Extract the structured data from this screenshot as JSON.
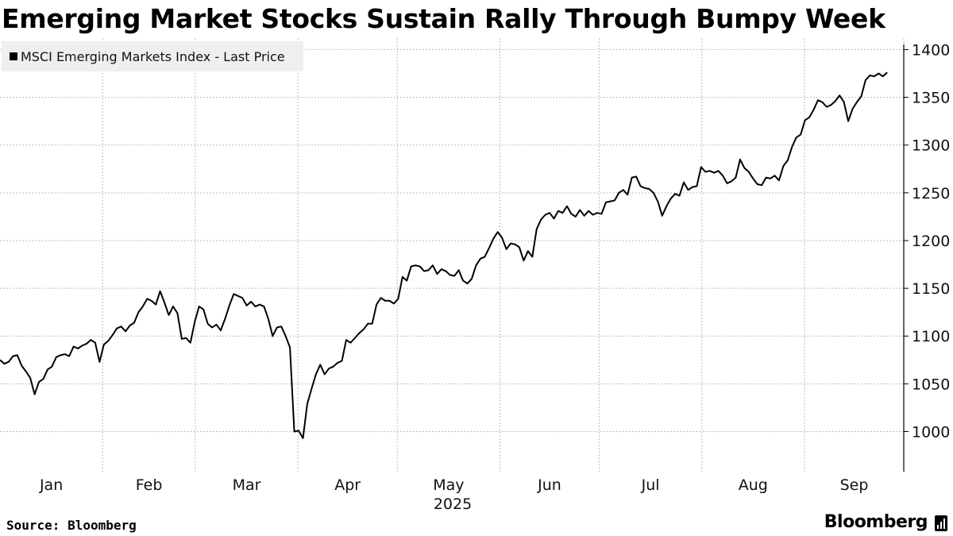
{
  "page": {
    "title": "Emerging Market Stocks Sustain Rally Through Bumpy Week",
    "source": "Source: Bloomberg",
    "brand": "Bloomberg"
  },
  "chart_data": {
    "type": "line",
    "title": "Emerging Market Stocks Sustain Rally Through Bumpy Week",
    "xlabel": "2025",
    "ylabel": "",
    "ylim": [
      958,
      1412
    ],
    "yticks": [
      1000,
      1050,
      1100,
      1150,
      1200,
      1250,
      1300,
      1350,
      1400
    ],
    "x_tick_labels": [
      "Jan",
      "Feb",
      "Mar",
      "Apr",
      "May",
      "Jun",
      "Jul",
      "Aug",
      "Sep"
    ],
    "x_year_label": "2025",
    "grid": true,
    "legend_position": "top-left",
    "color": "#000000",
    "series": [
      {
        "name": "MSCI Emerging Markets Index - Last Price",
        "start_date": "2025-01-01",
        "end_date": "2025-09-26",
        "values": [
          1075,
          1071,
          1073,
          1079,
          1080,
          1069,
          1063,
          1056,
          1039,
          1052,
          1055,
          1065,
          1068,
          1078,
          1080,
          1081,
          1079,
          1089,
          1087,
          1090,
          1092,
          1096,
          1093,
          1073,
          1091,
          1095,
          1101,
          1108,
          1110,
          1105,
          1111,
          1114,
          1125,
          1131,
          1139,
          1137,
          1133,
          1147,
          1135,
          1122,
          1131,
          1124,
          1097,
          1098,
          1093,
          1115,
          1131,
          1128,
          1113,
          1109,
          1112,
          1106,
          1118,
          1132,
          1144,
          1142,
          1140,
          1132,
          1136,
          1131,
          1133,
          1131,
          1118,
          1100,
          1109,
          1110,
          1100,
          1088,
          1000,
          1001,
          993,
          1029,
          1045,
          1060,
          1070,
          1060,
          1066,
          1068,
          1072,
          1074,
          1096,
          1093,
          1098,
          1103,
          1107,
          1113,
          1113,
          1133,
          1140,
          1137,
          1137,
          1134,
          1139,
          1162,
          1158,
          1173,
          1174,
          1173,
          1168,
          1169,
          1174,
          1165,
          1170,
          1168,
          1164,
          1163,
          1169,
          1158,
          1155,
          1160,
          1174,
          1181,
          1183,
          1192,
          1202,
          1209,
          1203,
          1191,
          1197,
          1196,
          1193,
          1179,
          1189,
          1183,
          1212,
          1222,
          1227,
          1229,
          1223,
          1231,
          1229,
          1236,
          1228,
          1225,
          1232,
          1226,
          1231,
          1227,
          1229,
          1228,
          1240,
          1241,
          1242,
          1250,
          1253,
          1248,
          1266,
          1267,
          1257,
          1255,
          1254,
          1250,
          1241,
          1226,
          1236,
          1244,
          1249,
          1247,
          1261,
          1253,
          1256,
          1257,
          1277,
          1272,
          1273,
          1271,
          1273,
          1268,
          1260,
          1262,
          1266,
          1285,
          1276,
          1272,
          1265,
          1259,
          1258,
          1266,
          1265,
          1268,
          1263,
          1278,
          1284,
          1298,
          1308,
          1311,
          1326,
          1329,
          1337,
          1347,
          1345,
          1340,
          1342,
          1346,
          1352,
          1345,
          1325,
          1338,
          1345,
          1351,
          1368,
          1373,
          1372,
          1375,
          1372,
          1376
        ]
      }
    ]
  }
}
